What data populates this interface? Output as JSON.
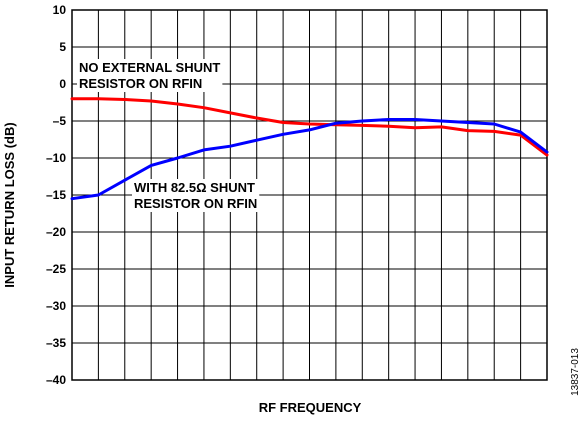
{
  "chart_data": {
    "type": "line",
    "xlabel": "RF FREQUENCY",
    "ylabel": "INPUT RETURN LOSS (dB)",
    "ylim": [
      -40,
      10
    ],
    "yticks": [
      10,
      5,
      0,
      -5,
      -10,
      -15,
      -20,
      -25,
      -30,
      -35,
      -40
    ],
    "ytick_labels": [
      "10",
      "5",
      "0",
      "–5",
      "–10",
      "–15",
      "–20",
      "–25",
      "–30",
      "–35",
      "–40"
    ],
    "x_divisions": 18,
    "grid": true,
    "series": [
      {
        "color": "#ff0000",
        "x": [
          0,
          1,
          2,
          3,
          4,
          5,
          6,
          7,
          8,
          9,
          10,
          11,
          12,
          13,
          14,
          15,
          16,
          17,
          18
        ],
        "y": [
          -2.0,
          -2.0,
          -2.1,
          -2.3,
          -2.7,
          -3.2,
          -3.9,
          -4.6,
          -5.2,
          -5.4,
          -5.5,
          -5.6,
          -5.7,
          -5.9,
          -5.8,
          -6.3,
          -6.4,
          -6.9,
          -9.6
        ]
      },
      {
        "color": "#0000ff",
        "x": [
          0,
          1,
          2,
          3,
          4,
          5,
          6,
          7,
          8,
          9,
          10,
          11,
          12,
          13,
          14,
          15,
          16,
          17,
          18
        ],
        "y": [
          -15.5,
          -15.0,
          -13.0,
          -11.0,
          -10.0,
          -8.9,
          -8.4,
          -7.6,
          -6.8,
          -6.2,
          -5.3,
          -5.0,
          -4.8,
          -4.8,
          -5.0,
          -5.2,
          -5.4,
          -6.5,
          -9.2
        ]
      }
    ],
    "annotations": [
      {
        "lines": [
          "NO EXTERNAL SHUNT",
          "RESISTOR ON RFIN"
        ]
      },
      {
        "lines": [
          "WITH 82.5Ω SHUNT",
          "RESISTOR ON RFIN"
        ]
      }
    ],
    "figure_id": "13837-013"
  }
}
